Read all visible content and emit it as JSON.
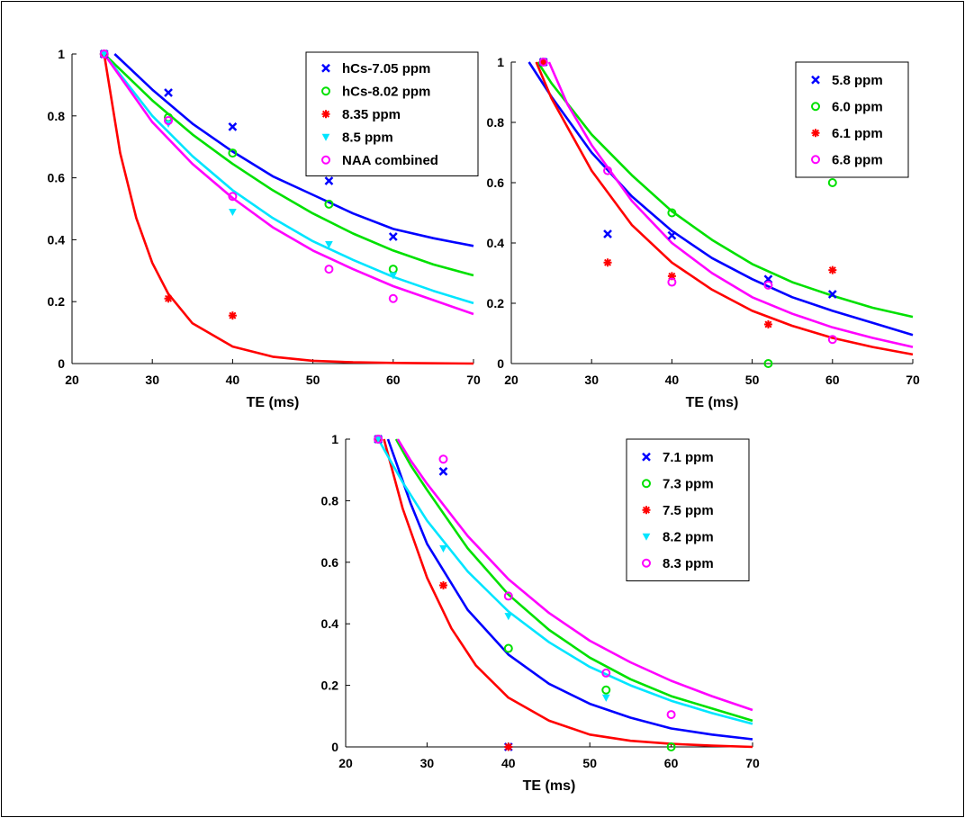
{
  "chart_data": [
    {
      "type": "scatter",
      "xlabel": "TE (ms)",
      "ylabel": "",
      "xlim": [
        20,
        70
      ],
      "ylim": [
        0,
        1
      ],
      "xticks": [
        "20",
        "30",
        "40",
        "50",
        "60",
        "70"
      ],
      "yticks": [
        "0",
        "0.2",
        "0.4",
        "0.6",
        "0.8",
        "1"
      ],
      "legend_position": "top-right",
      "series": [
        {
          "name": "hCs-7.05 ppm",
          "color": "#0000ff",
          "marker": "x",
          "points": [
            [
              24,
              1.0
            ],
            [
              32,
              0.875
            ],
            [
              40,
              0.765
            ],
            [
              52,
              0.59
            ],
            [
              60,
              0.41
            ]
          ],
          "fit": [
            [
              25.3,
              1.0
            ],
            [
              30,
              0.885
            ],
            [
              35,
              0.775
            ],
            [
              40,
              0.685
            ],
            [
              45,
              0.605
            ],
            [
              50,
              0.545
            ],
            [
              55,
              0.485
            ],
            [
              60,
              0.435
            ],
            [
              65,
              0.405
            ],
            [
              70,
              0.38
            ]
          ]
        },
        {
          "name": "hCs-8.02 ppm",
          "color": "#00e000",
          "marker": "circle",
          "points": [
            [
              24,
              1.0
            ],
            [
              32,
              0.795
            ],
            [
              40,
              0.68
            ],
            [
              52,
              0.515
            ],
            [
              60,
              0.305
            ]
          ],
          "fit": [
            [
              24,
              1.0
            ],
            [
              30,
              0.85
            ],
            [
              35,
              0.74
            ],
            [
              40,
              0.645
            ],
            [
              45,
              0.56
            ],
            [
              50,
              0.485
            ],
            [
              55,
              0.42
            ],
            [
              60,
              0.365
            ],
            [
              65,
              0.32
            ],
            [
              70,
              0.285
            ]
          ]
        },
        {
          "name": "8.35 ppm",
          "color": "#ff0000",
          "marker": "asterisk",
          "points": [
            [
              24,
              1.0
            ],
            [
              32,
              0.21
            ],
            [
              40,
              0.155
            ]
          ],
          "fit": [
            [
              24,
              1.0
            ],
            [
              26,
              0.68
            ],
            [
              28,
              0.47
            ],
            [
              30,
              0.325
            ],
            [
              32,
              0.225
            ],
            [
              35,
              0.13
            ],
            [
              40,
              0.055
            ],
            [
              45,
              0.022
            ],
            [
              50,
              0.009
            ],
            [
              55,
              0.004
            ],
            [
              60,
              0.002
            ],
            [
              65,
              0.0008
            ],
            [
              70,
              0.0
            ]
          ]
        },
        {
          "name": "8.5 ppm",
          "color": "#00e5ff",
          "marker": "triangle",
          "points": [
            [
              24,
              1.0
            ],
            [
              32,
              0.775
            ],
            [
              40,
              0.49
            ],
            [
              52,
              0.385
            ],
            [
              60,
              0.285
            ]
          ],
          "fit": [
            [
              24,
              1.0
            ],
            [
              30,
              0.8
            ],
            [
              35,
              0.67
            ],
            [
              40,
              0.56
            ],
            [
              45,
              0.47
            ],
            [
              50,
              0.395
            ],
            [
              55,
              0.335
            ],
            [
              60,
              0.28
            ],
            [
              65,
              0.235
            ],
            [
              70,
              0.195
            ]
          ]
        },
        {
          "name": "NAA combined",
          "color": "#ff00ff",
          "marker": "circle",
          "points": [
            [
              24,
              1.0
            ],
            [
              32,
              0.785
            ],
            [
              40,
              0.54
            ],
            [
              52,
              0.305
            ],
            [
              60,
              0.21
            ]
          ],
          "fit": [
            [
              24,
              1.0
            ],
            [
              30,
              0.78
            ],
            [
              35,
              0.645
            ],
            [
              40,
              0.535
            ],
            [
              45,
              0.44
            ],
            [
              50,
              0.365
            ],
            [
              55,
              0.305
            ],
            [
              60,
              0.25
            ],
            [
              65,
              0.205
            ],
            [
              70,
              0.16
            ]
          ]
        }
      ]
    },
    {
      "type": "scatter",
      "xlabel": "TE (ms)",
      "ylabel": "",
      "xlim": [
        20,
        70
      ],
      "ylim": [
        0,
        1
      ],
      "xticks": [
        "20",
        "30",
        "40",
        "50",
        "60",
        "70"
      ],
      "yticks": [
        "0",
        "0.2",
        "0.4",
        "0.6",
        "0.8",
        "1"
      ],
      "legend_position": "top-right",
      "series": [
        {
          "name": "5.8 ppm",
          "color": "#0000ff",
          "marker": "x",
          "points": [
            [
              24,
              1.0
            ],
            [
              32,
              0.43
            ],
            [
              40,
              0.425
            ],
            [
              52,
              0.28
            ],
            [
              60,
              0.23
            ]
          ],
          "fit": [
            [
              22.2,
              1.0
            ],
            [
              25,
              0.885
            ],
            [
              30,
              0.7
            ],
            [
              35,
              0.555
            ],
            [
              40,
              0.44
            ],
            [
              45,
              0.35
            ],
            [
              50,
              0.28
            ],
            [
              55,
              0.22
            ],
            [
              60,
              0.175
            ],
            [
              65,
              0.135
            ],
            [
              70,
              0.095
            ]
          ]
        },
        {
          "name": "6.0 ppm",
          "color": "#00e000",
          "marker": "circle",
          "points": [
            [
              24,
              1.0
            ],
            [
              40,
              0.5
            ],
            [
              52,
              0.0
            ],
            [
              60,
              0.6
            ]
          ],
          "fit": [
            [
              23.3,
              1.0
            ],
            [
              25,
              0.93
            ],
            [
              30,
              0.76
            ],
            [
              35,
              0.625
            ],
            [
              40,
              0.505
            ],
            [
              45,
              0.41
            ],
            [
              50,
              0.33
            ],
            [
              55,
              0.27
            ],
            [
              60,
              0.225
            ],
            [
              65,
              0.185
            ],
            [
              70,
              0.155
            ]
          ]
        },
        {
          "name": "6.1 ppm",
          "color": "#ff0000",
          "marker": "asterisk",
          "points": [
            [
              24,
              1.0
            ],
            [
              32,
              0.335
            ],
            [
              40,
              0.29
            ],
            [
              52,
              0.13
            ],
            [
              60,
              0.31
            ]
          ],
          "fit": [
            [
              23.1,
              1.0
            ],
            [
              25,
              0.88
            ],
            [
              30,
              0.64
            ],
            [
              35,
              0.46
            ],
            [
              40,
              0.335
            ],
            [
              45,
              0.245
            ],
            [
              50,
              0.175
            ],
            [
              55,
              0.125
            ],
            [
              60,
              0.085
            ],
            [
              65,
              0.055
            ],
            [
              70,
              0.03
            ]
          ]
        },
        {
          "name": "6.8 ppm",
          "color": "#ff00ff",
          "marker": "circle",
          "points": [
            [
              24,
              1.0
            ],
            [
              32,
              0.64
            ],
            [
              40,
              0.27
            ],
            [
              52,
              0.26
            ],
            [
              60,
              0.08
            ]
          ],
          "fit": [
            [
              24.7,
              1.0
            ],
            [
              27,
              0.86
            ],
            [
              30,
              0.725
            ],
            [
              35,
              0.54
            ],
            [
              40,
              0.4
            ],
            [
              45,
              0.3
            ],
            [
              50,
              0.22
            ],
            [
              55,
              0.165
            ],
            [
              60,
              0.12
            ],
            [
              65,
              0.085
            ],
            [
              70,
              0.055
            ]
          ]
        }
      ]
    },
    {
      "type": "scatter",
      "xlabel": "TE (ms)",
      "ylabel": "",
      "xlim": [
        20,
        70
      ],
      "ylim": [
        0,
        1
      ],
      "xticks": [
        "20",
        "30",
        "40",
        "50",
        "60",
        "70"
      ],
      "yticks": [
        "0",
        "0.2",
        "0.4",
        "0.6",
        "0.8",
        "1"
      ],
      "legend_position": "top-right",
      "series": [
        {
          "name": "7.1 ppm",
          "color": "#0000ff",
          "marker": "x",
          "points": [
            [
              24,
              1.0
            ],
            [
              32,
              0.895
            ],
            [
              40,
              0.0
            ]
          ],
          "fit": [
            [
              25.2,
              1.0
            ],
            [
              28,
              0.79
            ],
            [
              30,
              0.66
            ],
            [
              35,
              0.445
            ],
            [
              40,
              0.3
            ],
            [
              45,
              0.205
            ],
            [
              50,
              0.14
            ],
            [
              55,
              0.095
            ],
            [
              60,
              0.06
            ],
            [
              65,
              0.04
            ],
            [
              70,
              0.025
            ]
          ]
        },
        {
          "name": "7.3 ppm",
          "color": "#00e000",
          "marker": "circle",
          "points": [
            [
              24,
              1.0
            ],
            [
              40,
              0.32
            ],
            [
              52,
              0.185
            ],
            [
              60,
              0.0
            ]
          ],
          "fit": [
            [
              26.2,
              1.0
            ],
            [
              28,
              0.915
            ],
            [
              30,
              0.835
            ],
            [
              35,
              0.645
            ],
            [
              40,
              0.495
            ],
            [
              45,
              0.38
            ],
            [
              50,
              0.29
            ],
            [
              55,
              0.22
            ],
            [
              60,
              0.165
            ],
            [
              65,
              0.125
            ],
            [
              70,
              0.085
            ]
          ]
        },
        {
          "name": "7.5 ppm",
          "color": "#ff0000",
          "marker": "asterisk",
          "points": [
            [
              24,
              1.0
            ],
            [
              32,
              0.525
            ],
            [
              40,
              0.0
            ]
          ],
          "fit": [
            [
              24.7,
              1.0
            ],
            [
              27,
              0.775
            ],
            [
              30,
              0.55
            ],
            [
              33,
              0.385
            ],
            [
              36,
              0.265
            ],
            [
              40,
              0.16
            ],
            [
              45,
              0.085
            ],
            [
              50,
              0.04
            ],
            [
              55,
              0.02
            ],
            [
              60,
              0.01
            ],
            [
              65,
              0.004
            ],
            [
              70,
              0.0
            ]
          ]
        },
        {
          "name": "8.2 ppm",
          "color": "#00e5ff",
          "marker": "triangle",
          "points": [
            [
              24,
              1.0
            ],
            [
              32,
              0.645
            ],
            [
              40,
              0.425
            ],
            [
              52,
              0.16
            ]
          ],
          "fit": [
            [
              24,
              1.0
            ],
            [
              27,
              0.86
            ],
            [
              30,
              0.735
            ],
            [
              35,
              0.57
            ],
            [
              40,
              0.44
            ],
            [
              45,
              0.34
            ],
            [
              50,
              0.26
            ],
            [
              55,
              0.2
            ],
            [
              60,
              0.15
            ],
            [
              65,
              0.11
            ],
            [
              70,
              0.075
            ]
          ]
        },
        {
          "name": "8.3 ppm",
          "color": "#ff00ff",
          "marker": "circle",
          "points": [
            [
              24,
              1.0
            ],
            [
              32,
              0.935
            ],
            [
              40,
              0.49
            ],
            [
              52,
              0.24
            ],
            [
              60,
              0.105
            ]
          ],
          "fit": [
            [
              26.4,
              1.0
            ],
            [
              28,
              0.93
            ],
            [
              30,
              0.855
            ],
            [
              35,
              0.685
            ],
            [
              40,
              0.545
            ],
            [
              45,
              0.435
            ],
            [
              50,
              0.345
            ],
            [
              55,
              0.275
            ],
            [
              60,
              0.215
            ],
            [
              65,
              0.165
            ],
            [
              70,
              0.12
            ]
          ]
        }
      ]
    }
  ]
}
